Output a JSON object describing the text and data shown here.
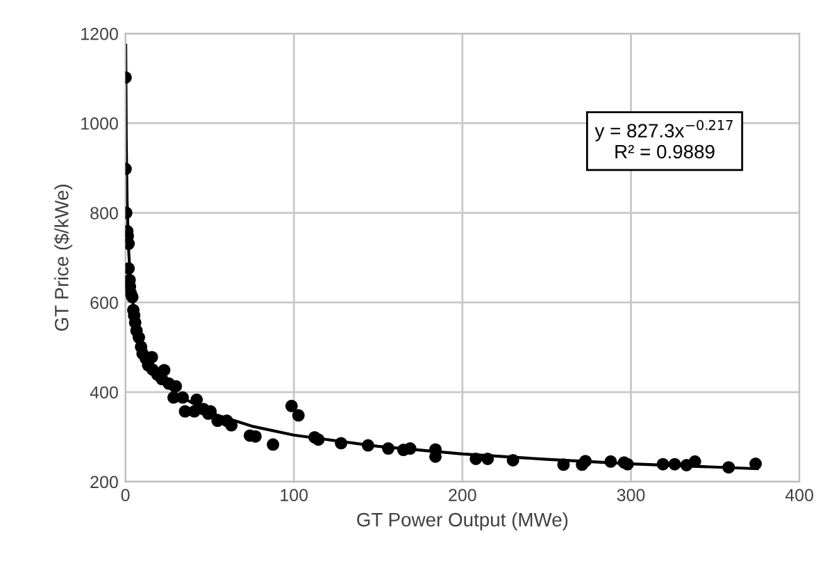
{
  "chart_data": {
    "type": "scatter",
    "xlabel": "GT Power Output (MWe)",
    "ylabel": "GT Price ($/kWe)",
    "xlim": [
      0,
      400
    ],
    "xticks": [
      0,
      100,
      200,
      300,
      400
    ],
    "ylim": [
      200,
      1200
    ],
    "yticks": [
      200,
      400,
      600,
      800,
      1000,
      1200
    ],
    "grid": true,
    "marker": "circle",
    "annotations": [
      "y = 827.3x$^{−0.217}$\nR² = 0.9889"
    ],
    "series": [
      {
        "color": "#000000",
        "x": [
          0.1,
          0.1,
          0.5,
          1.1,
          1.4,
          1.9,
          1.9,
          2.5,
          2.7,
          3.3,
          4.1,
          4.7,
          5.2,
          5.8,
          6.6,
          8,
          9.3,
          10.2,
          12.1,
          15.7,
          13.5,
          16.2,
          19,
          23,
          21.7,
          25.8,
          28.6,
          29.9,
          34,
          35.4,
          42.3,
          40.9,
          46.4,
          49.2,
          50.5,
          54.7,
          60.2,
          62.9,
          73.9,
          77.2,
          87.6,
          98.6,
          102.7,
          112.3,
          114.5,
          128,
          144,
          156,
          165,
          169,
          184,
          184,
          208,
          215,
          230,
          260,
          271,
          273,
          288,
          296,
          298,
          319,
          326,
          333,
          338,
          358,
          374
        ],
        "values": [
          1102,
          898,
          800,
          759,
          748,
          731,
          676,
          650,
          635,
          620,
          612,
          583,
          571,
          555,
          537,
          522,
          501,
          486,
          475,
          478,
          460,
          450,
          439,
          449,
          429,
          419,
          388,
          413,
          388,
          357,
          383,
          357,
          362,
          352,
          357,
          336,
          336,
          326,
          303,
          301,
          283,
          369,
          348,
          299,
          294,
          286,
          281,
          274,
          271,
          274,
          272,
          256,
          251,
          251,
          248,
          238,
          238,
          246,
          245,
          243,
          239,
          239,
          239,
          237,
          245,
          232,
          240
        ]
      },
      {
        "type": "line",
        "color": "#000000",
        "marker": "none",
        "x": [
          0.2,
          0.5,
          1,
          2,
          3,
          5,
          8,
          12,
          20,
          30,
          50,
          75,
          100,
          150,
          200,
          250,
          300,
          375
        ],
        "values": [
          1174,
          965,
          827,
          711,
          652,
          583,
          527,
          483,
          432,
          396,
          354,
          324,
          304,
          279,
          262,
          250,
          240,
          229
        ]
      }
    ]
  }
}
